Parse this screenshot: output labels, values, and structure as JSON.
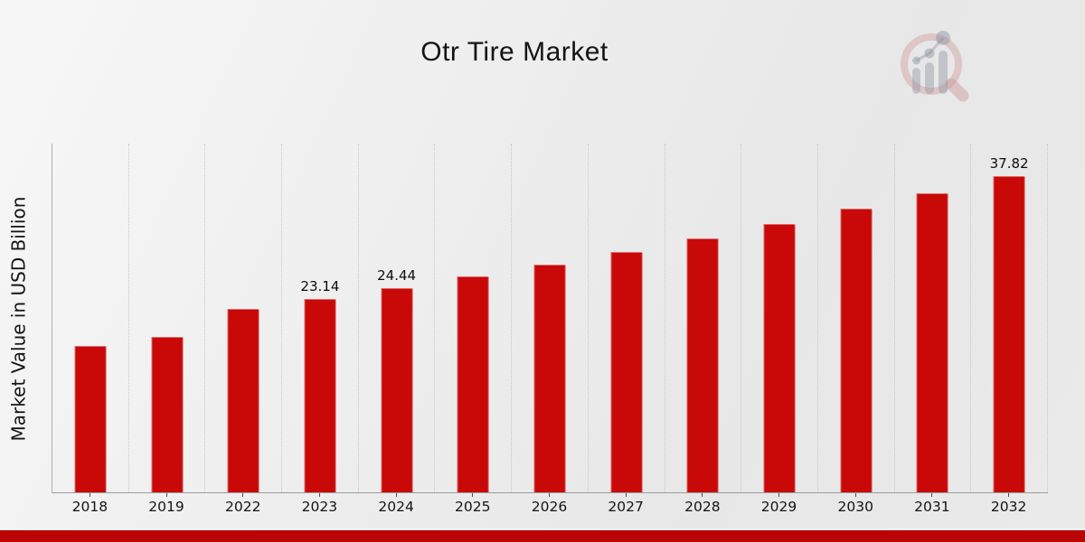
{
  "title": "Otr Tire Market",
  "y_axis_label": "Market Value in USD Billion",
  "logo": {
    "name": "magnifier-growth-chart-logo"
  },
  "colors": {
    "bar": "#c90808",
    "footer": "#bb0404",
    "background_light": "#f7f7f7",
    "background_dark": "#e7e7e7",
    "grid": "#c7c7c7",
    "axis": "#9c9c9c",
    "text": "#141414",
    "logo_pink": "#cd9696",
    "logo_gray": "#8c91a0"
  },
  "chart_data": {
    "type": "bar",
    "title": "Otr Tire Market",
    "xlabel": "",
    "ylabel": "Market Value in USD Billion",
    "categories": [
      "2018",
      "2019",
      "2022",
      "2023",
      "2024",
      "2025",
      "2026",
      "2027",
      "2028",
      "2029",
      "2030",
      "2031",
      "2032"
    ],
    "values": [
      17.5,
      18.6,
      21.9,
      23.14,
      24.44,
      25.81,
      27.26,
      28.79,
      30.4,
      32.11,
      33.91,
      35.81,
      37.82
    ],
    "bar_labels": [
      "",
      "",
      "",
      "23.14",
      "24.44",
      "",
      "",
      "",
      "",
      "",
      "",
      "",
      "37.82"
    ],
    "ylim": [
      0,
      41.7
    ],
    "grid": "vertical-dotted",
    "legend": "none"
  }
}
